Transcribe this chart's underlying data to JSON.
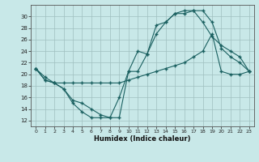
{
  "xlabel": "Humidex (Indice chaleur)",
  "bg_color": "#c8e8e8",
  "line_color": "#1a6060",
  "xlim": [
    -0.5,
    23.5
  ],
  "ylim": [
    11,
    32
  ],
  "yticks": [
    12,
    14,
    16,
    18,
    20,
    22,
    24,
    26,
    28,
    30
  ],
  "xticks": [
    0,
    1,
    2,
    3,
    4,
    5,
    6,
    7,
    8,
    9,
    10,
    11,
    12,
    13,
    14,
    15,
    16,
    17,
    18,
    19,
    20,
    21,
    22,
    23
  ],
  "line1_x": [
    0,
    1,
    2,
    3,
    4,
    5,
    6,
    7,
    8,
    9,
    10,
    11,
    12,
    13,
    14,
    15,
    16,
    17,
    18,
    19,
    20,
    21,
    22,
    23
  ],
  "line1_y": [
    21,
    19,
    18.5,
    17.5,
    15,
    13.5,
    12.5,
    12.5,
    12.5,
    16,
    20.5,
    24,
    23.5,
    28.5,
    29,
    30.5,
    31,
    31,
    29,
    26.5,
    25,
    24,
    23,
    20.5
  ],
  "line2_x": [
    0,
    1,
    2,
    3,
    4,
    5,
    6,
    7,
    8,
    9,
    10,
    11,
    12,
    13,
    14,
    15,
    16,
    17,
    18,
    19,
    20,
    21,
    22,
    23
  ],
  "line2_y": [
    21,
    19,
    18.5,
    17.5,
    15.5,
    15,
    14,
    13,
    12.5,
    12.5,
    20.5,
    20.5,
    23.5,
    27,
    29,
    30.5,
    30.5,
    31,
    31,
    29,
    24.5,
    23,
    22,
    20.5
  ],
  "line3_x": [
    0,
    1,
    2,
    3,
    4,
    5,
    6,
    7,
    8,
    9,
    10,
    11,
    12,
    13,
    14,
    15,
    16,
    17,
    18,
    19,
    20,
    21,
    22,
    23
  ],
  "line3_y": [
    21,
    19.5,
    18.5,
    18.5,
    18.5,
    18.5,
    18.5,
    18.5,
    18.5,
    18.5,
    19,
    19.5,
    20,
    20.5,
    21,
    21.5,
    22,
    23,
    24,
    27,
    20.5,
    20,
    20,
    20.5
  ]
}
